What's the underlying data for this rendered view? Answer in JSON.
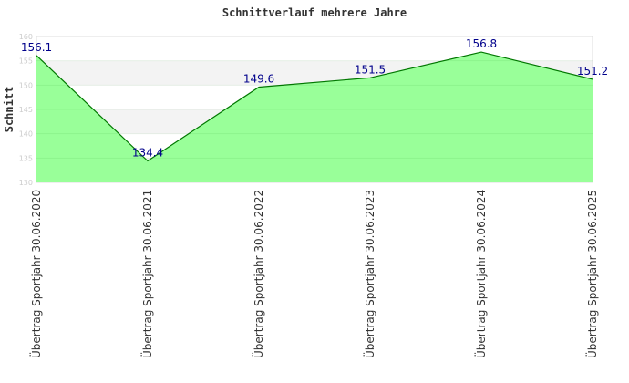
{
  "chart_data": {
    "type": "area",
    "title": "Schnittverlauf mehrere Jahre",
    "xlabel": "",
    "ylabel": "Schnitt",
    "ylim": [
      130,
      160
    ],
    "yticks": [
      130,
      135,
      140,
      145,
      150,
      155,
      160
    ],
    "categories": [
      "Übertrag Sportjahr 30.06.2020",
      "Übertrag Sportjahr 30.06.2021",
      "Übertrag Sportjahr 30.06.2022",
      "Übertrag Sportjahr 30.06.2023",
      "Übertrag Sportjahr 30.06.2024",
      "Übertrag Sportjahr 30.06.2025"
    ],
    "values": [
      156.1,
      134.4,
      149.6,
      151.5,
      156.8,
      151.2
    ],
    "data_labels": [
      "156.1",
      "134.4",
      "149.6",
      "151.5",
      "156.8",
      "151.2"
    ],
    "colors": {
      "fill": "#99ff99",
      "line": "#007700",
      "label": "#00008b"
    }
  }
}
